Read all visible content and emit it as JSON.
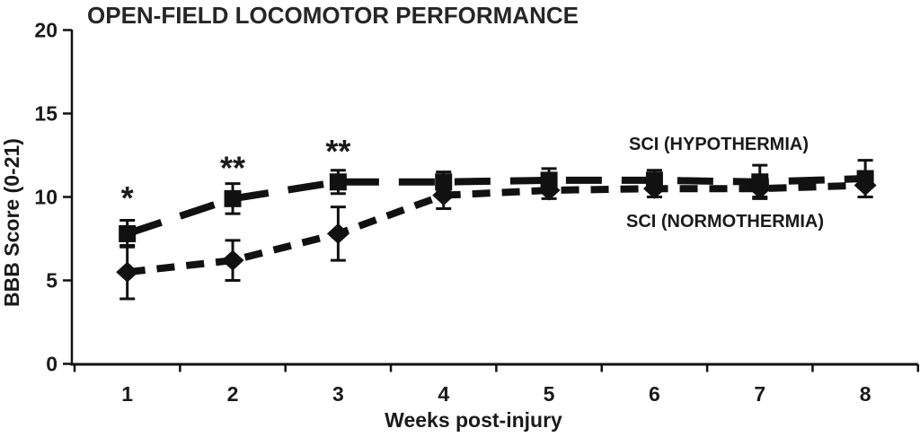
{
  "figure": {
    "background": "#ffffff",
    "foreground": "#111111"
  },
  "chart_data": {
    "type": "line",
    "title": "OPEN-FIELD LOCOMOTOR PERFORMANCE",
    "xlabel": "Weeks post-injury",
    "ylabel": "BBB Score (0-21)",
    "x": [
      1,
      2,
      3,
      4,
      5,
      6,
      7,
      8
    ],
    "xticks": [
      "1",
      "2",
      "3",
      "4",
      "5",
      "6",
      "7",
      "8"
    ],
    "yticks": [
      "0",
      "5",
      "10",
      "15",
      "20"
    ],
    "ylim": [
      0,
      20
    ],
    "xlim": [
      0.5,
      8.5
    ],
    "grid": false,
    "legend_position": "inline-labels",
    "series": [
      {
        "name": "SCI (HYPOTHERMIA)",
        "marker": "square",
        "linestyle": "long-dash",
        "color": "#111111",
        "values": [
          7.8,
          9.9,
          10.9,
          10.9,
          11.0,
          11.0,
          10.9,
          11.1
        ],
        "errors": [
          0.8,
          0.9,
          0.7,
          0.6,
          0.7,
          0.6,
          1.0,
          1.1
        ]
      },
      {
        "name": "SCI (NORMOTHERMIA)",
        "marker": "diamond",
        "linestyle": "short-dash",
        "color": "#111111",
        "values": [
          5.5,
          6.2,
          7.8,
          10.1,
          10.4,
          10.5,
          10.5,
          10.7
        ],
        "errors": [
          1.6,
          1.2,
          1.6,
          0.8,
          0.5,
          0.5,
          0.5,
          0.7
        ]
      }
    ],
    "annotations": [
      {
        "text": "*",
        "week": 1,
        "value": 10.4
      },
      {
        "text": "**",
        "week": 2,
        "value": 12.2
      },
      {
        "text": "**",
        "week": 3,
        "value": 13.2
      }
    ]
  }
}
